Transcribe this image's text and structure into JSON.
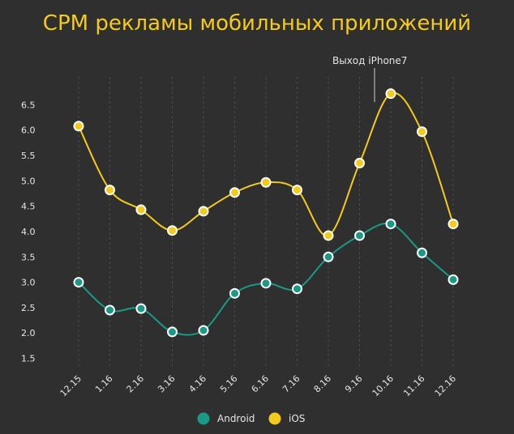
{
  "chart_data": {
    "type": "line",
    "title": "CPM рекламы мобильных приложений",
    "categories": [
      "12.15",
      "1.16",
      "2.16",
      "3.16",
      "4.16",
      "5.16",
      "6.16",
      "7.16",
      "8.16",
      "9.16",
      "10.16",
      "11.16",
      "12.16"
    ],
    "series": [
      {
        "name": "Android",
        "color": "#1a9a86",
        "values": [
          3.0,
          2.45,
          2.48,
          2.02,
          2.05,
          2.78,
          2.98,
          2.87,
          3.5,
          3.92,
          4.15,
          3.58,
          3.05
        ]
      },
      {
        "name": "iOS",
        "color": "#f5cb19",
        "values": [
          6.08,
          4.82,
          4.43,
          4.02,
          4.4,
          4.77,
          4.97,
          4.82,
          3.92,
          5.35,
          6.72,
          5.97,
          4.15
        ]
      }
    ],
    "yticks": [
      "1.5",
      "2.0",
      "2.5",
      "3.0",
      "3.5",
      "4.0",
      "4.5",
      "5.0",
      "5.5",
      "6.0",
      "6.5"
    ],
    "ylim": [
      1.3,
      7.05
    ],
    "annotation": {
      "text": "Выход iPhone7",
      "category": "10.16"
    },
    "legend": "bottom-center",
    "grid": "vertical-dashed"
  }
}
